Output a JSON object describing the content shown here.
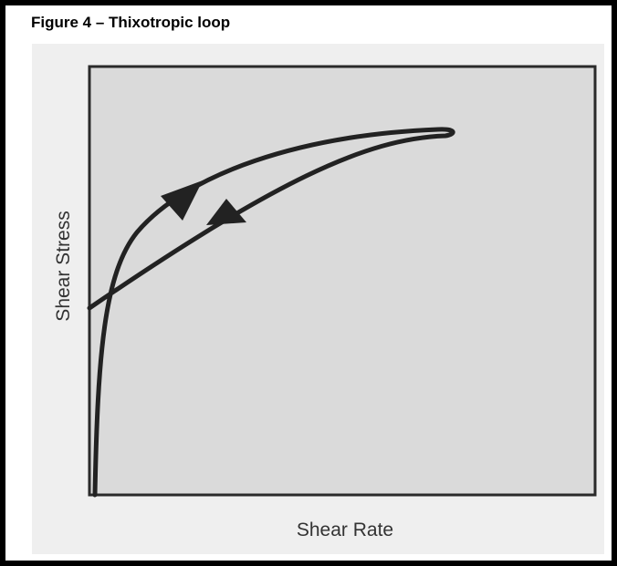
{
  "figure": {
    "title": "Figure 4 – Thixotropic loop",
    "x_label": "Shear Rate",
    "y_label": "Shear Stress"
  }
}
